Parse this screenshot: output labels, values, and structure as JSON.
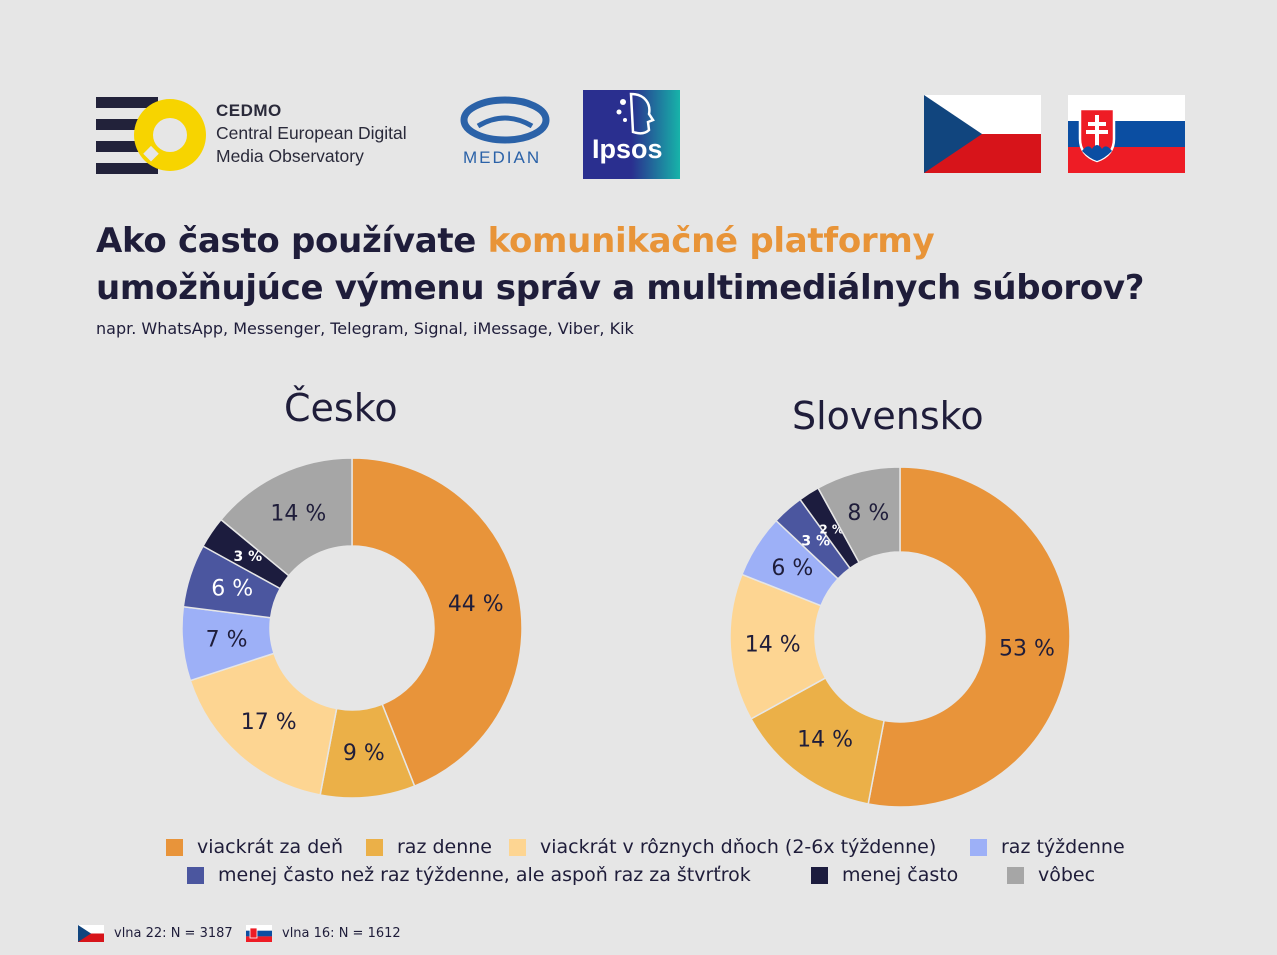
{
  "logos": {
    "cedmo": {
      "brand": "CEDMO",
      "line1": "Central European Digital",
      "line2": "Media Observatory"
    },
    "median": "MEDIAN",
    "ipsos": "Ipsos"
  },
  "title": {
    "part1": "Ako často používate ",
    "highlight": "komunikačné platformy",
    "part2": "umožňujúce výmenu správ a multimediálnych súborov?"
  },
  "subtitle": "napr. WhatsApp, Messenger, Telegram, Signal, iMessage, Viber, Kik",
  "colors": {
    "accent": "#e89438",
    "series": [
      "#e8943a",
      "#ebb048",
      "#fdd592",
      "#9db0f7",
      "#4b569f",
      "#1c1c3e",
      "#a6a6a6"
    ]
  },
  "chart_data": [
    {
      "type": "pie",
      "title": "Česko",
      "categories": [
        "viackrát za deň",
        "raz denne",
        "viackrát v rôznych dňoch (2-6x týždenne)",
        "raz týždenne",
        "menej často než raz týždenne, ale aspoň raz za štvrťrok",
        "menej často",
        "vôbec"
      ],
      "values": [
        44,
        9,
        17,
        7,
        6,
        3,
        14
      ],
      "labels": [
        "44 %",
        "9 %",
        "17 %",
        "7 %",
        "6 %",
        "3 %",
        "14 %"
      ]
    },
    {
      "type": "pie",
      "title": "Slovensko",
      "categories": [
        "viackrát za deň",
        "raz denne",
        "viackrát v rôznych dňoch (2-6x týždenne)",
        "raz týždenne",
        "menej často než raz týždenne, ale aspoň raz za štvrťrok",
        "menej často",
        "vôbec"
      ],
      "values": [
        53,
        14,
        14,
        6,
        3,
        2,
        8
      ],
      "labels": [
        "53 %",
        "14 %",
        "14 %",
        "6 %",
        "3 %",
        "2 %",
        "8 %"
      ]
    }
  ],
  "legend": [
    "viackrát za deň",
    "raz denne",
    "viackrát v rôznych dňoch (2-6x týždenne)",
    "raz týždenne",
    "menej často než raz týždenne, ale aspoň raz za štvrťrok",
    "menej často",
    "vôbec"
  ],
  "footnotes": {
    "cz": "vlna 22: N = 3187",
    "sk": "vlna 16: N = 1612"
  }
}
